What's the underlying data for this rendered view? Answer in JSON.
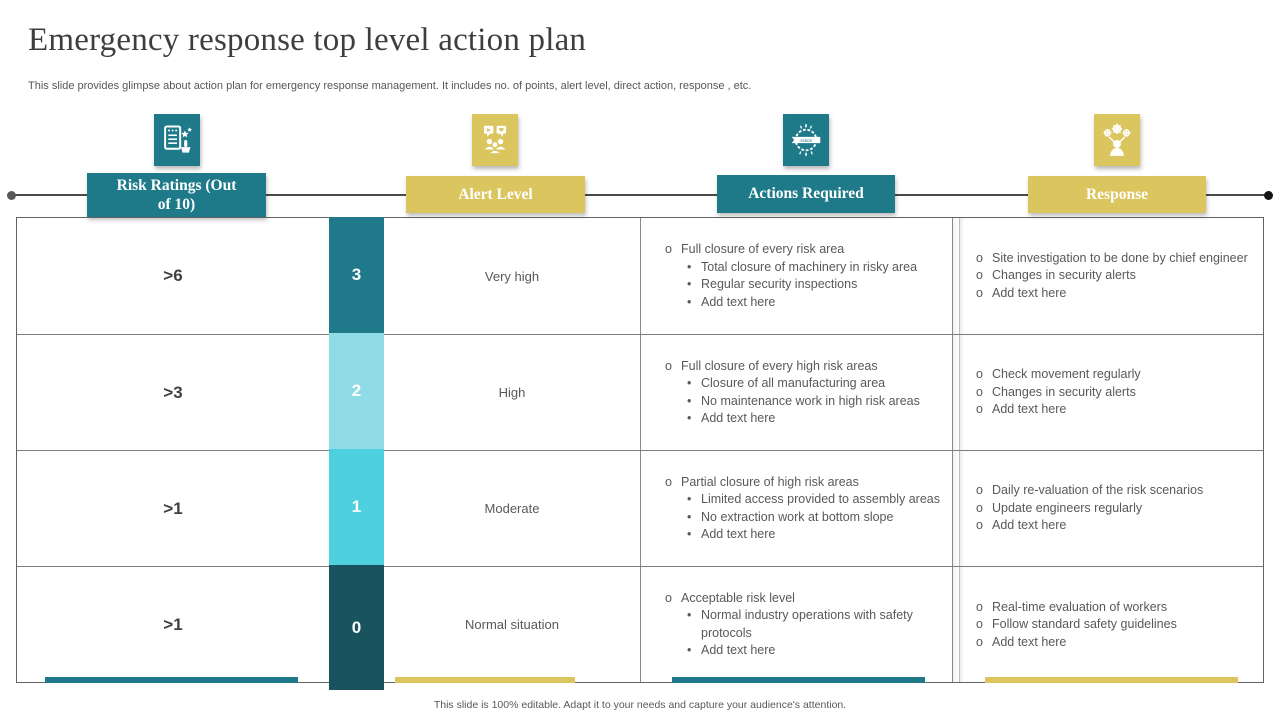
{
  "slide": {
    "title": "Emergency response top level action plan",
    "subtitle": "This slide provides glimpse about action plan for emergency response management. It includes no. of points, alert level, direct action, response , etc.",
    "footer": "This slide is 100% editable. Adapt it to your needs and capture your audience's attention."
  },
  "colors": {
    "teal": "#1E7A89",
    "teal_dark": "#19545E",
    "cyan": "#4FD0DE",
    "cyan_light": "#8FDCE6",
    "yellow": "#DBC55F",
    "text_dark": "#3F3F3F",
    "text_gray": "#595959",
    "border_gray": "#7D7D7D"
  },
  "columns": [
    {
      "label": "Risk Ratings (Out of 10)",
      "color": "teal",
      "icon": "checklist-rating-icon"
    },
    {
      "label": "Alert Level",
      "color": "yellow",
      "icon": "people-communication-icon"
    },
    {
      "label": "Actions Required",
      "color": "teal",
      "icon": "action-badge-icon"
    },
    {
      "label": "Response",
      "color": "yellow",
      "icon": "person-gears-icon"
    }
  ],
  "action_badge_text": "Action",
  "rows": [
    {
      "risk_rating": ">6",
      "level_number": "3",
      "level_color": "#20798A",
      "alert_level": "Very high",
      "actions": {
        "main": "Full closure of every risk area",
        "subs": [
          "Total closure of machinery in risky area",
          "Regular security inspections",
          "Add text here"
        ]
      },
      "responses": [
        "Site investigation to be done by chief engineer",
        "Changes in security alerts",
        "Add text here"
      ]
    },
    {
      "risk_rating": ">3",
      "level_number": "2",
      "level_color": "#8FDCE6",
      "alert_level": "High",
      "actions": {
        "main": "Full closure of every high risk areas",
        "subs": [
          "Closure of all manufacturing area",
          "No maintenance work in high risk areas",
          "Add text here"
        ]
      },
      "responses": [
        "Check movement regularly",
        "Changes in security alerts",
        "Add text here"
      ]
    },
    {
      "risk_rating": ">1",
      "level_number": "1",
      "level_color": "#4FD0DE",
      "alert_level": "Moderate",
      "actions": {
        "main": "Partial closure of high risk areas",
        "subs": [
          "Limited access provided to assembly areas",
          "No extraction work at bottom slope",
          "Add text here"
        ]
      },
      "responses": [
        "Daily re-valuation of the risk scenarios",
        "Update engineers regularly",
        "Add text here"
      ]
    },
    {
      "risk_rating": ">1",
      "level_number": "0",
      "level_color": "#19545E",
      "alert_level": "Normal situation",
      "actions": {
        "main": "Acceptable risk level",
        "subs": [
          "Normal industry operations with safety protocols",
          "Add text here"
        ]
      },
      "responses": [
        "Real-time evaluation of workers",
        "Follow standard safety guidelines",
        "Add text here"
      ]
    }
  ]
}
